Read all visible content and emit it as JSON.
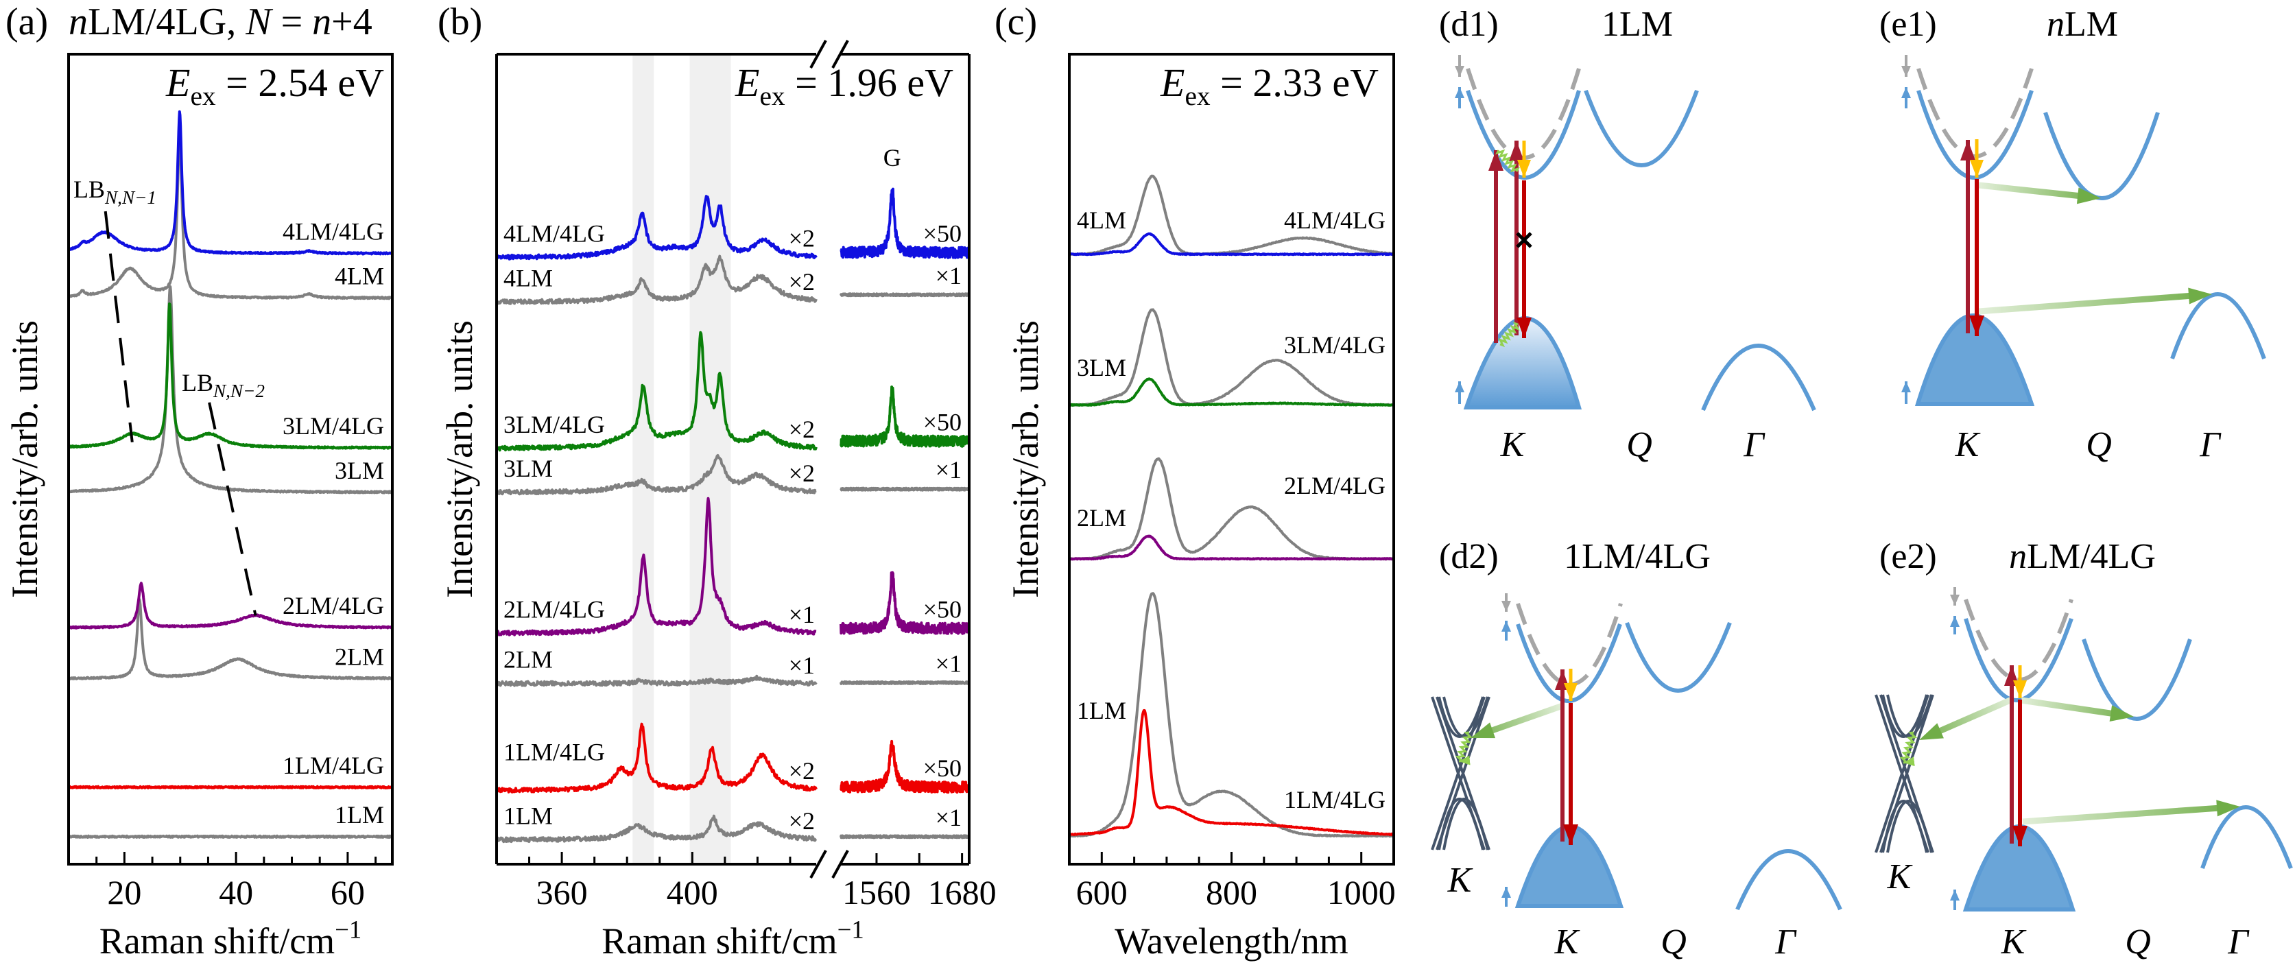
{
  "chart_data": [
    {
      "panel_label": "(a)",
      "title": [
        {
          "t": "n",
          "i": true
        },
        {
          "t": "LM/4LG, "
        },
        {
          "t": "N",
          "i": true
        },
        {
          "t": " = "
        },
        {
          "t": "n",
          "i": true
        },
        {
          "t": "+4"
        }
      ],
      "type": "line",
      "peak_shape": "lorentzian",
      "annotation": [
        {
          "t": "E",
          "i": true
        },
        {
          "t": "ex",
          "sub": true
        },
        {
          "t": " = 2.54 eV"
        }
      ],
      "xlabel": [
        {
          "t": "Raman shift/cm"
        },
        {
          "t": "−1",
          "sup": true
        }
      ],
      "ylabel": "Intensity/arb. units",
      "xlim": [
        10,
        68
      ],
      "ylim": [
        0,
        100
      ],
      "xticks": [
        20,
        40,
        60
      ],
      "xminor_step": 5,
      "grid": false,
      "series": [
        {
          "name": "4LM",
          "color": "#808080",
          "baseline": 69.9,
          "peaks": [
            [
              29.9,
              20,
              0.5
            ],
            [
              21,
              3.6,
              2.5
            ],
            [
              12.5,
              0.6,
              0.5
            ],
            [
              53,
              0.5,
              1
            ]
          ]
        },
        {
          "name": "3LM",
          "color": "#808080",
          "baseline": 45.9,
          "peaks": [
            [
              28.2,
              23,
              0.6
            ],
            [
              28.2,
              2.5,
              4
            ]
          ]
        },
        {
          "name": "2LM",
          "color": "#808080",
          "baseline": 22.9,
          "peaks": [
            [
              22.7,
              9.7,
              0.5
            ],
            [
              40.3,
              2.4,
              4
            ]
          ]
        },
        {
          "name": "1LM",
          "color": "#808080",
          "baseline": 3.4,
          "peaks": []
        },
        {
          "name": "4LM/4LG",
          "color": "#1010e0",
          "baseline": 75.4,
          "peaks": [
            [
              29.9,
              17.3,
              0.45
            ],
            [
              16.4,
              2.6,
              3
            ],
            [
              12.5,
              0.5,
              0.5
            ],
            [
              53,
              0.3,
              1
            ]
          ]
        },
        {
          "name": "3LM/4LG",
          "color": "#0a800a",
          "baseline": 51.4,
          "peaks": [
            [
              28.1,
              17.4,
              0.45
            ],
            [
              21.4,
              1.6,
              3
            ],
            [
              35.2,
              1.6,
              3
            ]
          ]
        },
        {
          "name": "2LM/4LG",
          "color": "#800080",
          "baseline": 29.2,
          "peaks": [
            [
              23.0,
              5.4,
              0.6
            ],
            [
              43.5,
              1.5,
              4
            ]
          ]
        },
        {
          "name": "1LM/4LG",
          "color": "#ee0000",
          "baseline": 9.5,
          "peaks": []
        }
      ],
      "guides": [
        {
          "label": [
            {
              "t": "LB"
            },
            {
              "t": "N,N−1",
              "sub": true,
              "i": true
            }
          ],
          "from": [
            16.6,
            80.6
          ],
          "to": [
            21.4,
            52.1
          ]
        },
        {
          "label": [
            {
              "t": "LB"
            },
            {
              "t": "N,N−2",
              "sub": true,
              "i": true
            }
          ],
          "from": [
            35.2,
            57.0
          ],
          "to": [
            43.5,
            30.7
          ]
        }
      ]
    },
    {
      "panel_label": "(b)",
      "type": "line",
      "peak_shape": "lorentzian",
      "annotation": [
        {
          "t": "E",
          "i": true
        },
        {
          "t": "ex",
          "sub": true
        },
        {
          "t": " = 1.96 eV"
        }
      ],
      "xlabel": [
        {
          "t": "Raman shift/cm"
        },
        {
          "t": "−1",
          "sup": true
        }
      ],
      "ylabel": "Intensity/arb. units",
      "broken_axis": true,
      "xlim_left": [
        340,
        438
      ],
      "xlim_right": [
        1510,
        1690
      ],
      "ylim": [
        0,
        100
      ],
      "xticks_left": [
        360,
        400
      ],
      "xminor_step_left": 10,
      "xticks_right": [
        1560,
        1680
      ],
      "xminor_right": [
        1620
      ],
      "shaded_ranges": [
        [
          381.7,
          388.2
        ],
        [
          399.2,
          411.8
        ]
      ],
      "peak_label": "G",
      "series": [
        {
          "name": "4LM",
          "color": "#808080",
          "baseline": 69.4,
          "peaks": [
            [
              380,
              0.7,
              6
            ],
            [
              384.6,
              2.3,
              1.4
            ],
            [
              404,
              3.5,
              1.8
            ],
            [
              408.5,
              4.5,
              1.8
            ],
            [
              421,
              3.0,
              5
            ]
          ],
          "mult_left": "×2",
          "g_baseline": 70.3,
          "g_peaks": [],
          "mult_right": "×1"
        },
        {
          "name": "3LM",
          "color": "#808080",
          "baseline": 45.9,
          "peaks": [
            [
              380,
              0.8,
              6
            ],
            [
              384.6,
              0.9,
              1.4
            ],
            [
              404,
              1.0,
              2
            ],
            [
              408,
              4.0,
              2.2
            ],
            [
              420,
              2.0,
              4.5
            ]
          ],
          "mult_left": "×2",
          "g_baseline": 46.3,
          "g_peaks": [],
          "mult_right": "×1"
        },
        {
          "name": "2LM",
          "color": "#808080",
          "baseline": 22.3,
          "peaks": [
            [
              384,
              0.3,
              2
            ],
            [
              406,
              0.3,
              3
            ],
            [
              420,
              0.7,
              4
            ]
          ],
          "mult_left": "×1",
          "g_baseline": 22.4,
          "g_peaks": [],
          "mult_right": "×1"
        },
        {
          "name": "1LM",
          "color": "#808080",
          "baseline": 3.0,
          "peaks": [
            [
              383,
              1.7,
              4
            ],
            [
              406.5,
              2.5,
              1.4
            ],
            [
              420,
              1.9,
              5
            ]
          ],
          "mult_left": "×2",
          "g_baseline": 3.4,
          "g_peaks": [],
          "mult_right": "×1"
        },
        {
          "name": "4LM/4LG",
          "color": "#1010e0",
          "baseline": 74.9,
          "peaks": [
            [
              380,
              1.0,
              6
            ],
            [
              395,
              0.9,
              6
            ],
            [
              384.6,
              4.7,
              1.3
            ],
            [
              404.4,
              6.8,
              1.3
            ],
            [
              408.5,
              5.5,
              1.3
            ],
            [
              422,
              2.0,
              4
            ]
          ],
          "mult_left": "×2",
          "g_baseline": 75.5,
          "g_peaks": [
            [
              1582,
              7.9,
              3.5
            ]
          ],
          "mult_right": "×50"
        },
        {
          "name": "3LM/4LG",
          "color": "#0a800a",
          "baseline": 51.3,
          "peaks": [
            [
              380,
              1.2,
              6
            ],
            [
              395,
              1.2,
              6
            ],
            [
              385,
              6.8,
              1.3
            ],
            [
              402.6,
              12.8,
              1.1
            ],
            [
              405.3,
              3.5,
              1.2
            ],
            [
              408.5,
              8.0,
              1.2
            ],
            [
              422,
              1.8,
              4
            ]
          ],
          "mult_left": "×2",
          "g_baseline": 52.2,
          "g_peaks": [
            [
              1582,
              6.4,
              3.5
            ]
          ],
          "mult_right": "×50"
        },
        {
          "name": "2LM/4LG",
          "color": "#800080",
          "baseline": 28.5,
          "peaks": [
            [
              380,
              0.8,
              6
            ],
            [
              395,
              0.8,
              6
            ],
            [
              385,
              8.8,
              1.2
            ],
            [
              404.9,
              15.6,
              1.1
            ],
            [
              408.5,
              2.5,
              1.8
            ],
            [
              422,
              1.1,
              4
            ]
          ],
          "mult_left": "×1",
          "g_baseline": 29.1,
          "g_peaks": [
            [
              1582,
              6.9,
              3.5
            ]
          ],
          "mult_right": "×50"
        },
        {
          "name": "1LM/4LG",
          "color": "#ee0000",
          "baseline": 9.1,
          "peaks": [
            [
              380,
              0.8,
              6
            ],
            [
              378,
              1.8,
              2
            ],
            [
              384.6,
              7.4,
              1.2
            ],
            [
              406,
              5.0,
              1.4
            ],
            [
              421.5,
              4.3,
              3.5
            ]
          ],
          "mult_left": "×2",
          "g_baseline": 9.5,
          "g_peaks": [
            [
              1582,
              5.3,
              4.5
            ]
          ],
          "mult_right": "×50"
        }
      ]
    },
    {
      "panel_label": "(c)",
      "type": "line",
      "peak_shape": "gaussian",
      "annotation": [
        {
          "t": "E",
          "i": true
        },
        {
          "t": "ex",
          "sub": true
        },
        {
          "t": " = 2.33 eV"
        }
      ],
      "xlabel": [
        {
          "t": "Wavelength/nm"
        }
      ],
      "ylabel": "Intensity/arb. units",
      "xlim": [
        550,
        1050
      ],
      "ylim": [
        0,
        100
      ],
      "xticks": [
        600,
        800,
        1000
      ],
      "xminor_step": 50,
      "series": [
        {
          "name": "4LM",
          "color": "#808080",
          "label_color": "#000000",
          "baseline": 75.3,
          "peaks": [
            [
              678,
              9.6,
              18
            ],
            [
              625,
              0.9,
              20
            ],
            [
              911,
              2.0,
              55
            ]
          ]
        },
        {
          "name": "3LM",
          "color": "#808080",
          "baseline": 56.7,
          "peaks": [
            [
              678,
              11.7,
              18
            ],
            [
              868,
              5.5,
              45
            ],
            [
              625,
              1.0,
              20
            ]
          ]
        },
        {
          "name": "2LM",
          "color": "#808080",
          "baseline": 37.7,
          "peaks": [
            [
              687,
              12.3,
              18
            ],
            [
              829,
              6.4,
              42
            ],
            [
              630,
              1.0,
              20
            ]
          ]
        },
        {
          "name": "1LM",
          "color": "#808080",
          "baseline": 3.5,
          "peaks": [
            [
              678,
              29.3,
              20
            ],
            [
              785,
              5.5,
              50
            ],
            [
              625,
              1.5,
              20
            ]
          ]
        },
        {
          "name": "4LM/4LG",
          "color": "#1010e0",
          "baseline": 75.3,
          "peaks": [
            [
              673,
              2.5,
              15
            ],
            [
              622,
              0.3,
              15
            ]
          ]
        },
        {
          "name": "3LM/4LG",
          "color": "#0a800a",
          "baseline": 56.7,
          "peaks": [
            [
              673,
              3.2,
              15
            ],
            [
              622,
              0.4,
              15
            ],
            [
              870,
              0.2,
              60
            ]
          ]
        },
        {
          "name": "2LM/4LG",
          "color": "#800080",
          "baseline": 37.7,
          "peaks": [
            [
              672,
              2.8,
              15
            ],
            [
              622,
              0.3,
              15
            ]
          ]
        },
        {
          "name": "1LM/4LG",
          "color": "#ee0000",
          "baseline": 3.5,
          "peaks": [
            [
              665,
              13.4,
              8
            ],
            [
              700,
              2.5,
              30
            ],
            [
              800,
              1.5,
              120
            ],
            [
              622,
              0.4,
              10
            ]
          ]
        }
      ]
    }
  ],
  "diagrams": [
    {
      "panel_label": "(d1)",
      "title": [
        {
          "t": "1LM"
        }
      ],
      "k_points": [
        "K",
        "Q",
        "Γ"
      ],
      "valence_fill": "gradient"
    },
    {
      "panel_label": "(e1)",
      "title": [
        {
          "t": "n",
          "i": true
        },
        {
          "t": "LM"
        }
      ],
      "k_points": [
        "K",
        "Q",
        "Γ"
      ],
      "valence_fill": "solid"
    },
    {
      "panel_label": "(d2)",
      "title": [
        {
          "t": "1LM/4LG"
        }
      ],
      "k_points": [
        "K",
        "Q",
        "Γ"
      ],
      "graphene_label": "K",
      "valence_fill": "solid"
    },
    {
      "panel_label": "(e2)",
      "title": [
        {
          "t": "n",
          "i": true
        },
        {
          "t": "LM/4LG"
        }
      ],
      "k_points": [
        "K",
        "Q",
        "Γ"
      ],
      "graphene_label": "K",
      "valence_fill": "solid"
    }
  ],
  "colors": {
    "band": "#5b9bd5",
    "band_fill": "#6aa5d8",
    "graphene_band": "#44546a",
    "dashed_band": "#a6a6a6",
    "excitation_arrow": "#a51c30",
    "emission_arrow": "#c00000",
    "relaxation_arrow": "#ffc000",
    "transfer_arrow": "#70ad47",
    "phonon": "#92d050",
    "shade": "#f0f0f0"
  }
}
